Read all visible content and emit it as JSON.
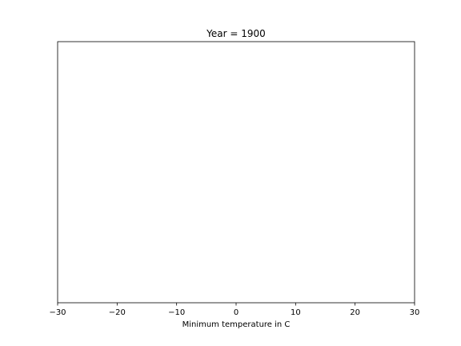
{
  "chart_data": {
    "type": "scatter",
    "title": "Year = 1900",
    "xlabel": "Minimum temperature in C",
    "ylabel": "",
    "xlim": [
      -30,
      30
    ],
    "xticks": [
      -30,
      -20,
      -10,
      0,
      10,
      20,
      30
    ],
    "xtick_labels": [
      "−30",
      "−20",
      "−10",
      "0",
      "10",
      "20",
      "30"
    ],
    "yticks_visible": false,
    "grid": false,
    "x": [],
    "y": []
  }
}
